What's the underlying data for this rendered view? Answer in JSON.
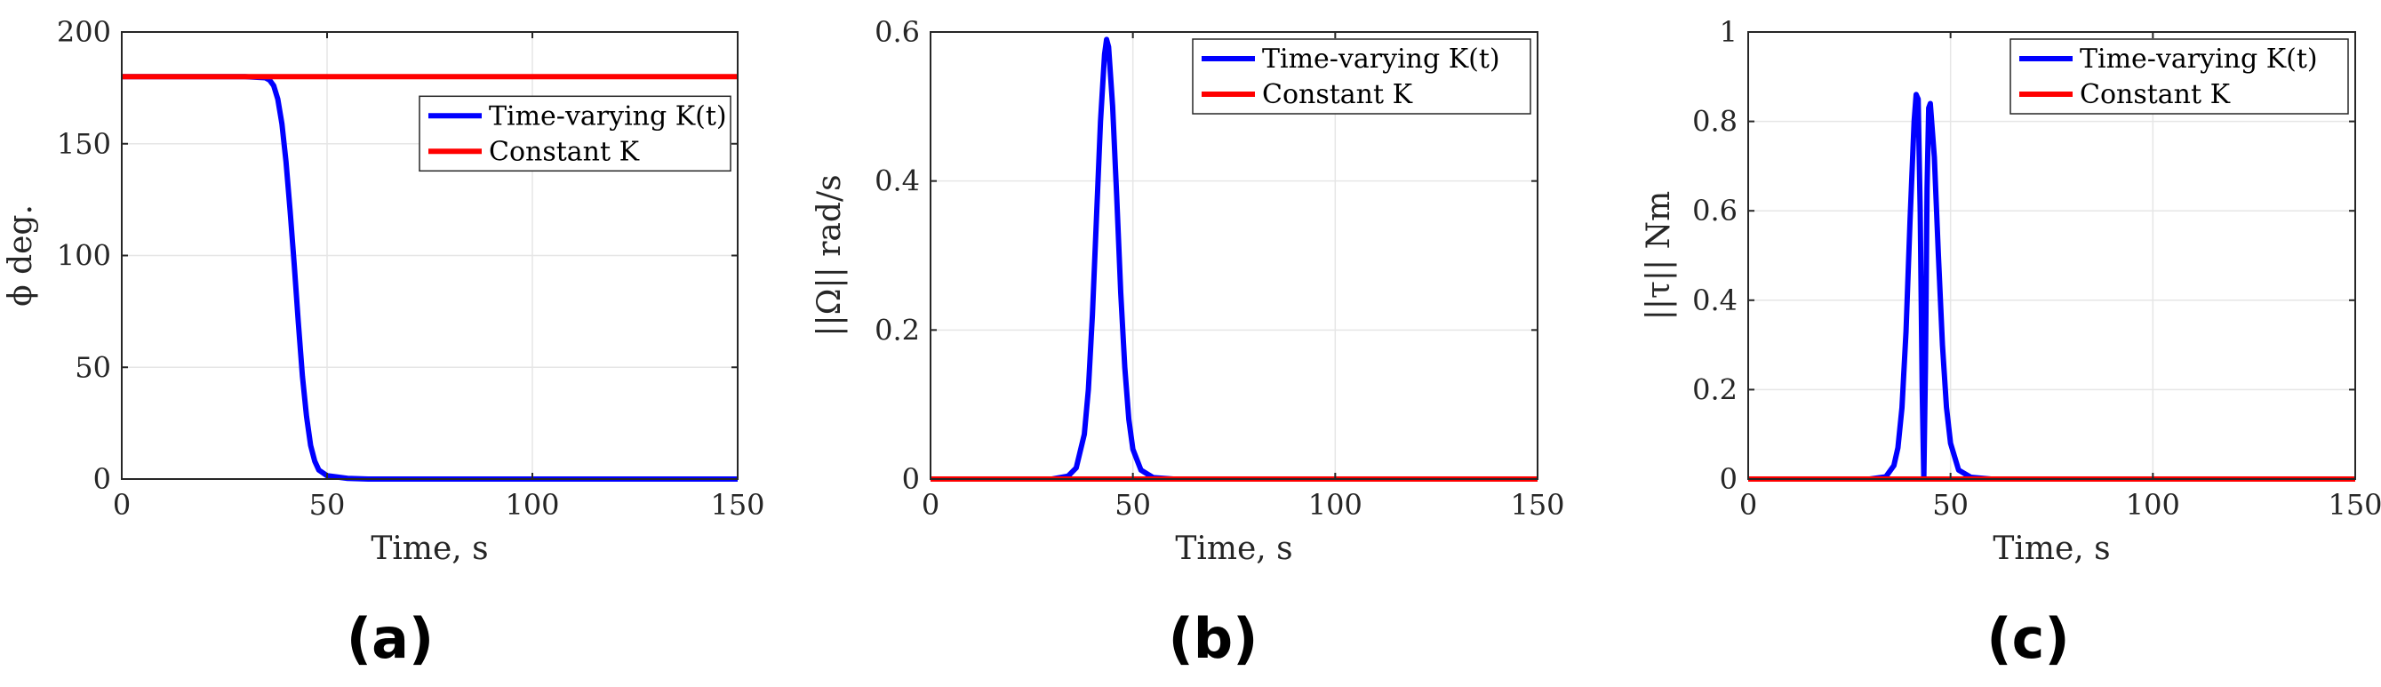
{
  "chart_data": [
    {
      "type": "line",
      "panel_label": "(a)",
      "xlabel": "Time, s",
      "ylabel": "ϕ deg.",
      "xlim": [
        0,
        150
      ],
      "ylim": [
        0,
        200
      ],
      "xticks": [
        0,
        50,
        100,
        150
      ],
      "yticks": [
        0,
        50,
        100,
        150,
        200
      ],
      "xtick_labels": [
        "0",
        "50",
        "100",
        "150"
      ],
      "ytick_labels": [
        "0",
        "50",
        "100",
        "150",
        "200"
      ],
      "legend_position": "top-right",
      "series": [
        {
          "name": "Time-varying K(t)",
          "color": "#0000ff",
          "x": [
            0,
            30,
            35,
            36,
            37,
            38,
            39,
            40,
            41,
            42,
            43,
            44,
            45,
            46,
            47,
            48,
            50,
            55,
            60,
            150
          ],
          "y": [
            180,
            180,
            179.5,
            178.5,
            176,
            170,
            159,
            142,
            120,
            96,
            70,
            46,
            28,
            15,
            8,
            4,
            1.5,
            0.3,
            0,
            0
          ]
        },
        {
          "name": "Constant K",
          "color": "#ff0000",
          "x": [
            0,
            150
          ],
          "y": [
            180,
            180
          ]
        }
      ]
    },
    {
      "type": "line",
      "panel_label": "(b)",
      "xlabel": "Time, s",
      "ylabel": "||Ω|| rad/s",
      "xlim": [
        0,
        150
      ],
      "ylim": [
        0,
        0.6
      ],
      "xticks": [
        0,
        50,
        100,
        150
      ],
      "yticks": [
        0,
        0.2,
        0.4,
        0.6
      ],
      "xtick_labels": [
        "0",
        "50",
        "100",
        "150"
      ],
      "ytick_labels": [
        "0",
        "0.2",
        "0.4",
        "0.6"
      ],
      "legend_position": "top-right",
      "series": [
        {
          "name": "Time-varying K(t)",
          "color": "#0000ff",
          "x": [
            0,
            30,
            34,
            36,
            38,
            39,
            40,
            41,
            42,
            43,
            43.5,
            44,
            45,
            46,
            47,
            48,
            49,
            50,
            52,
            55,
            60,
            150
          ],
          "y": [
            0,
            0,
            0.004,
            0.015,
            0.06,
            0.12,
            0.22,
            0.35,
            0.48,
            0.57,
            0.59,
            0.58,
            0.5,
            0.38,
            0.25,
            0.15,
            0.08,
            0.04,
            0.012,
            0.002,
            0,
            0
          ]
        },
        {
          "name": "Constant K",
          "color": "#ff0000",
          "x": [
            0,
            150
          ],
          "y": [
            0,
            0
          ]
        }
      ]
    },
    {
      "type": "line",
      "panel_label": "(c)",
      "xlabel": "Time, s",
      "ylabel": "||τ|| Nm",
      "xlim": [
        0,
        150
      ],
      "ylim": [
        0,
        1
      ],
      "xticks": [
        0,
        50,
        100,
        150
      ],
      "yticks": [
        0,
        0.2,
        0.4,
        0.6,
        0.8,
        1
      ],
      "xtick_labels": [
        "0",
        "50",
        "100",
        "150"
      ],
      "ytick_labels": [
        "0",
        "0.2",
        "0.4",
        "0.6",
        "0.8",
        "1"
      ],
      "legend_position": "top-right",
      "series": [
        {
          "name": "Time-varying K(t)",
          "color": "#0000ff",
          "x": [
            0,
            30,
            34,
            36,
            37,
            38,
            39,
            40,
            41,
            41.5,
            42,
            42.5,
            43,
            43.4,
            43.8,
            44.2,
            44.6,
            45,
            46,
            47,
            48,
            49,
            50,
            52,
            55,
            60,
            150
          ],
          "y": [
            0,
            0,
            0.005,
            0.03,
            0.07,
            0.16,
            0.33,
            0.58,
            0.8,
            0.86,
            0.85,
            0.6,
            0.2,
            0,
            0.25,
            0.65,
            0.83,
            0.84,
            0.72,
            0.5,
            0.3,
            0.16,
            0.08,
            0.02,
            0.004,
            0,
            0
          ]
        },
        {
          "name": "Constant K",
          "color": "#ff0000",
          "x": [
            0,
            150
          ],
          "y": [
            0,
            0
          ]
        }
      ]
    }
  ]
}
